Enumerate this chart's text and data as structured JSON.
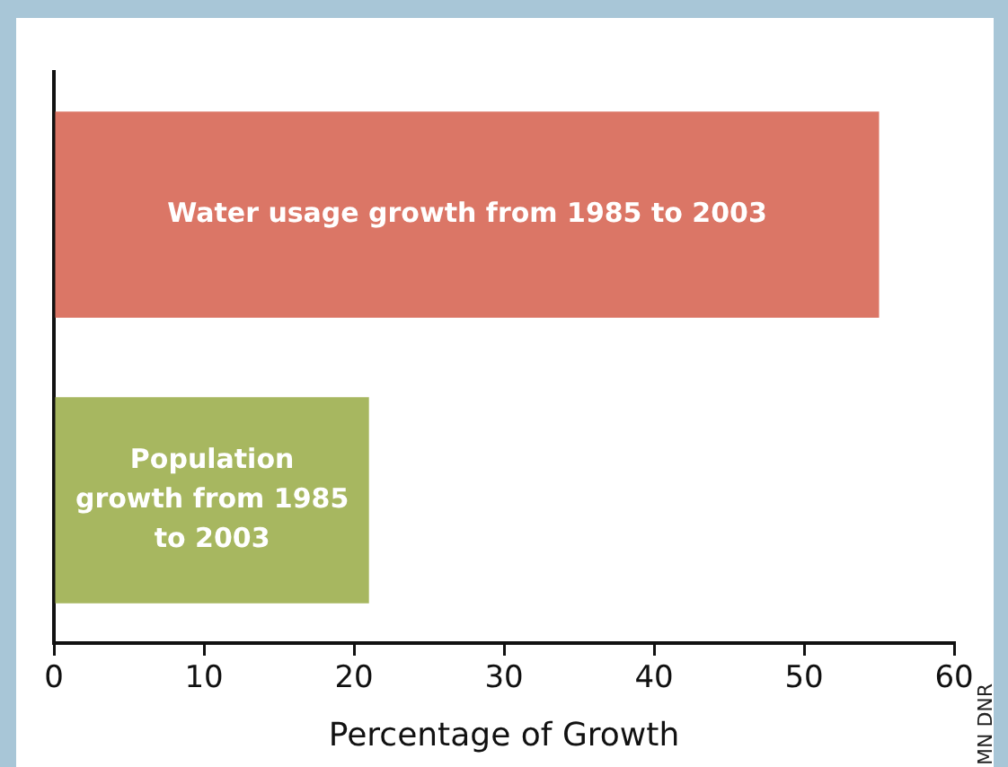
{
  "chart_data": {
    "type": "bar",
    "orientation": "horizontal",
    "xlabel": "Percentage of Growth",
    "categories": [
      "Water usage growth from 1985 to 2003",
      "Population growth from 1985 to 2003"
    ],
    "values": [
      55,
      21
    ],
    "colors": [
      "#db7666",
      "#a7b760"
    ],
    "xlim": [
      0,
      60
    ],
    "xticks": [
      0,
      10,
      20,
      30,
      40,
      50,
      60
    ],
    "grid": false,
    "legend": false,
    "annotations": [
      "MN DNR"
    ]
  }
}
